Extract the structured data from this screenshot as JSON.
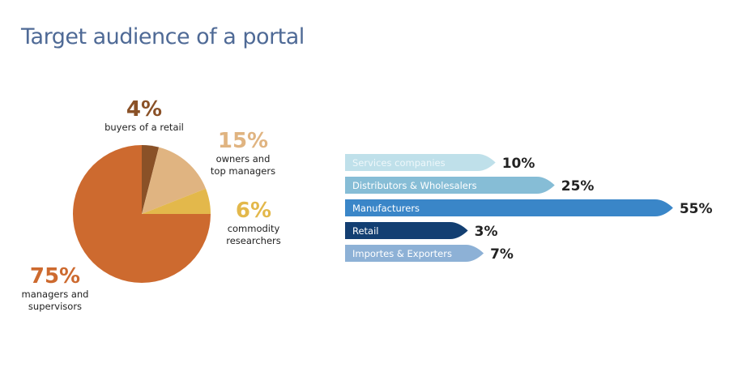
{
  "title": "Target audience of a portal",
  "chart_data": [
    {
      "type": "pie",
      "slices": [
        {
          "label": "buyers of a retail",
          "value": 4,
          "display": "4%",
          "color": "#8a5127"
        },
        {
          "label": "owners and top managers",
          "value": 15,
          "display": "15%",
          "color": "#e0b481"
        },
        {
          "label": "commodity researchers",
          "value": 6,
          "display": "6%",
          "color": "#e3b84b"
        },
        {
          "label": "managers and supervisors",
          "value": 75,
          "display": "75%",
          "color": "#cd6a2f"
        }
      ]
    },
    {
      "type": "bar",
      "orientation": "horizontal",
      "categories": [
        "Services companies",
        "Distributors & Wholesalers",
        "Manufacturers",
        "Retail",
        "Importes & Exporters"
      ],
      "values": [
        10,
        25,
        55,
        3,
        7
      ],
      "labels": [
        "10%",
        "25%",
        "55%",
        "3%",
        "7%"
      ],
      "colors": [
        "#bfe0ea",
        "#86bdd6",
        "#3a86c8",
        "#133f72",
        "#8db1d6"
      ]
    }
  ]
}
